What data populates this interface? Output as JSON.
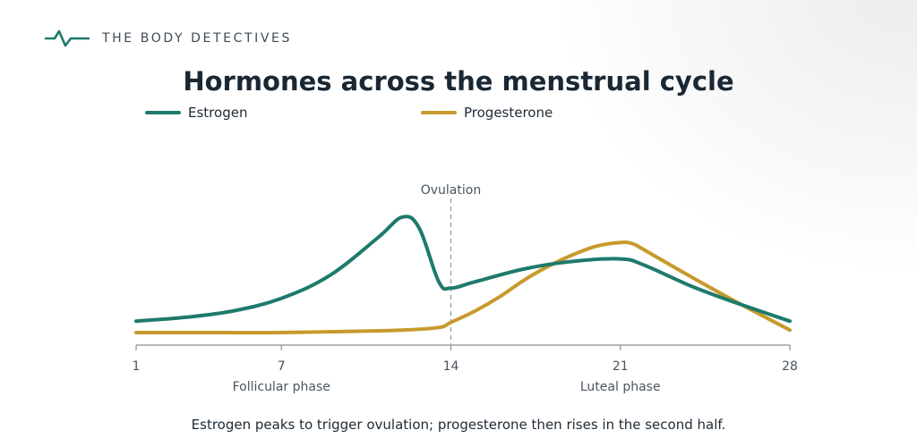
{
  "brand": {
    "name": "THE BODY DETECTIVES",
    "accent": "#1e7a6c"
  },
  "chart_data": {
    "type": "line",
    "title": "Hormones across the menstrual cycle",
    "xlabel": "",
    "ylabel": "",
    "xlim": [
      1,
      28
    ],
    "ylim": [
      0,
      1
    ],
    "xticks": [
      1,
      7,
      14,
      21,
      28
    ],
    "grid": false,
    "legend_position": "top",
    "series": [
      {
        "name": "Estrogen",
        "color": "#1e7a6c",
        "x": [
          1,
          3,
          5,
          7,
          9,
          11,
          12,
          12.7,
          13.5,
          14,
          15,
          17,
          19,
          21,
          22,
          24,
          26,
          28
        ],
        "y": [
          0.09,
          0.12,
          0.17,
          0.27,
          0.45,
          0.75,
          0.91,
          0.82,
          0.4,
          0.35,
          0.4,
          0.5,
          0.56,
          0.58,
          0.53,
          0.36,
          0.22,
          0.09
        ]
      },
      {
        "name": "Progesterone",
        "color": "#c79a2c",
        "x": [
          1,
          4,
          7,
          10,
          12,
          13.5,
          14,
          15,
          16,
          17,
          18,
          19,
          20,
          21,
          21.5,
          22,
          24,
          26,
          28
        ],
        "y": [
          0.0,
          0.0,
          0.0,
          0.01,
          0.02,
          0.04,
          0.08,
          0.17,
          0.28,
          0.41,
          0.52,
          0.61,
          0.68,
          0.71,
          0.7,
          0.65,
          0.43,
          0.22,
          0.02
        ]
      }
    ],
    "annotations": [
      {
        "text": "Ovulation",
        "x": 14,
        "style": "dashed-vertical-line"
      }
    ],
    "phases": [
      {
        "label": "Follicular phase",
        "x": 7
      },
      {
        "label": "Luteal phase",
        "x": 21
      }
    ]
  },
  "caption": "Estrogen peaks to trigger ovulation; progesterone then rises in the second half.",
  "colors": {
    "axis": "#8a9097",
    "annotation": "#9aa0a6",
    "text_muted": "#4a5560"
  }
}
